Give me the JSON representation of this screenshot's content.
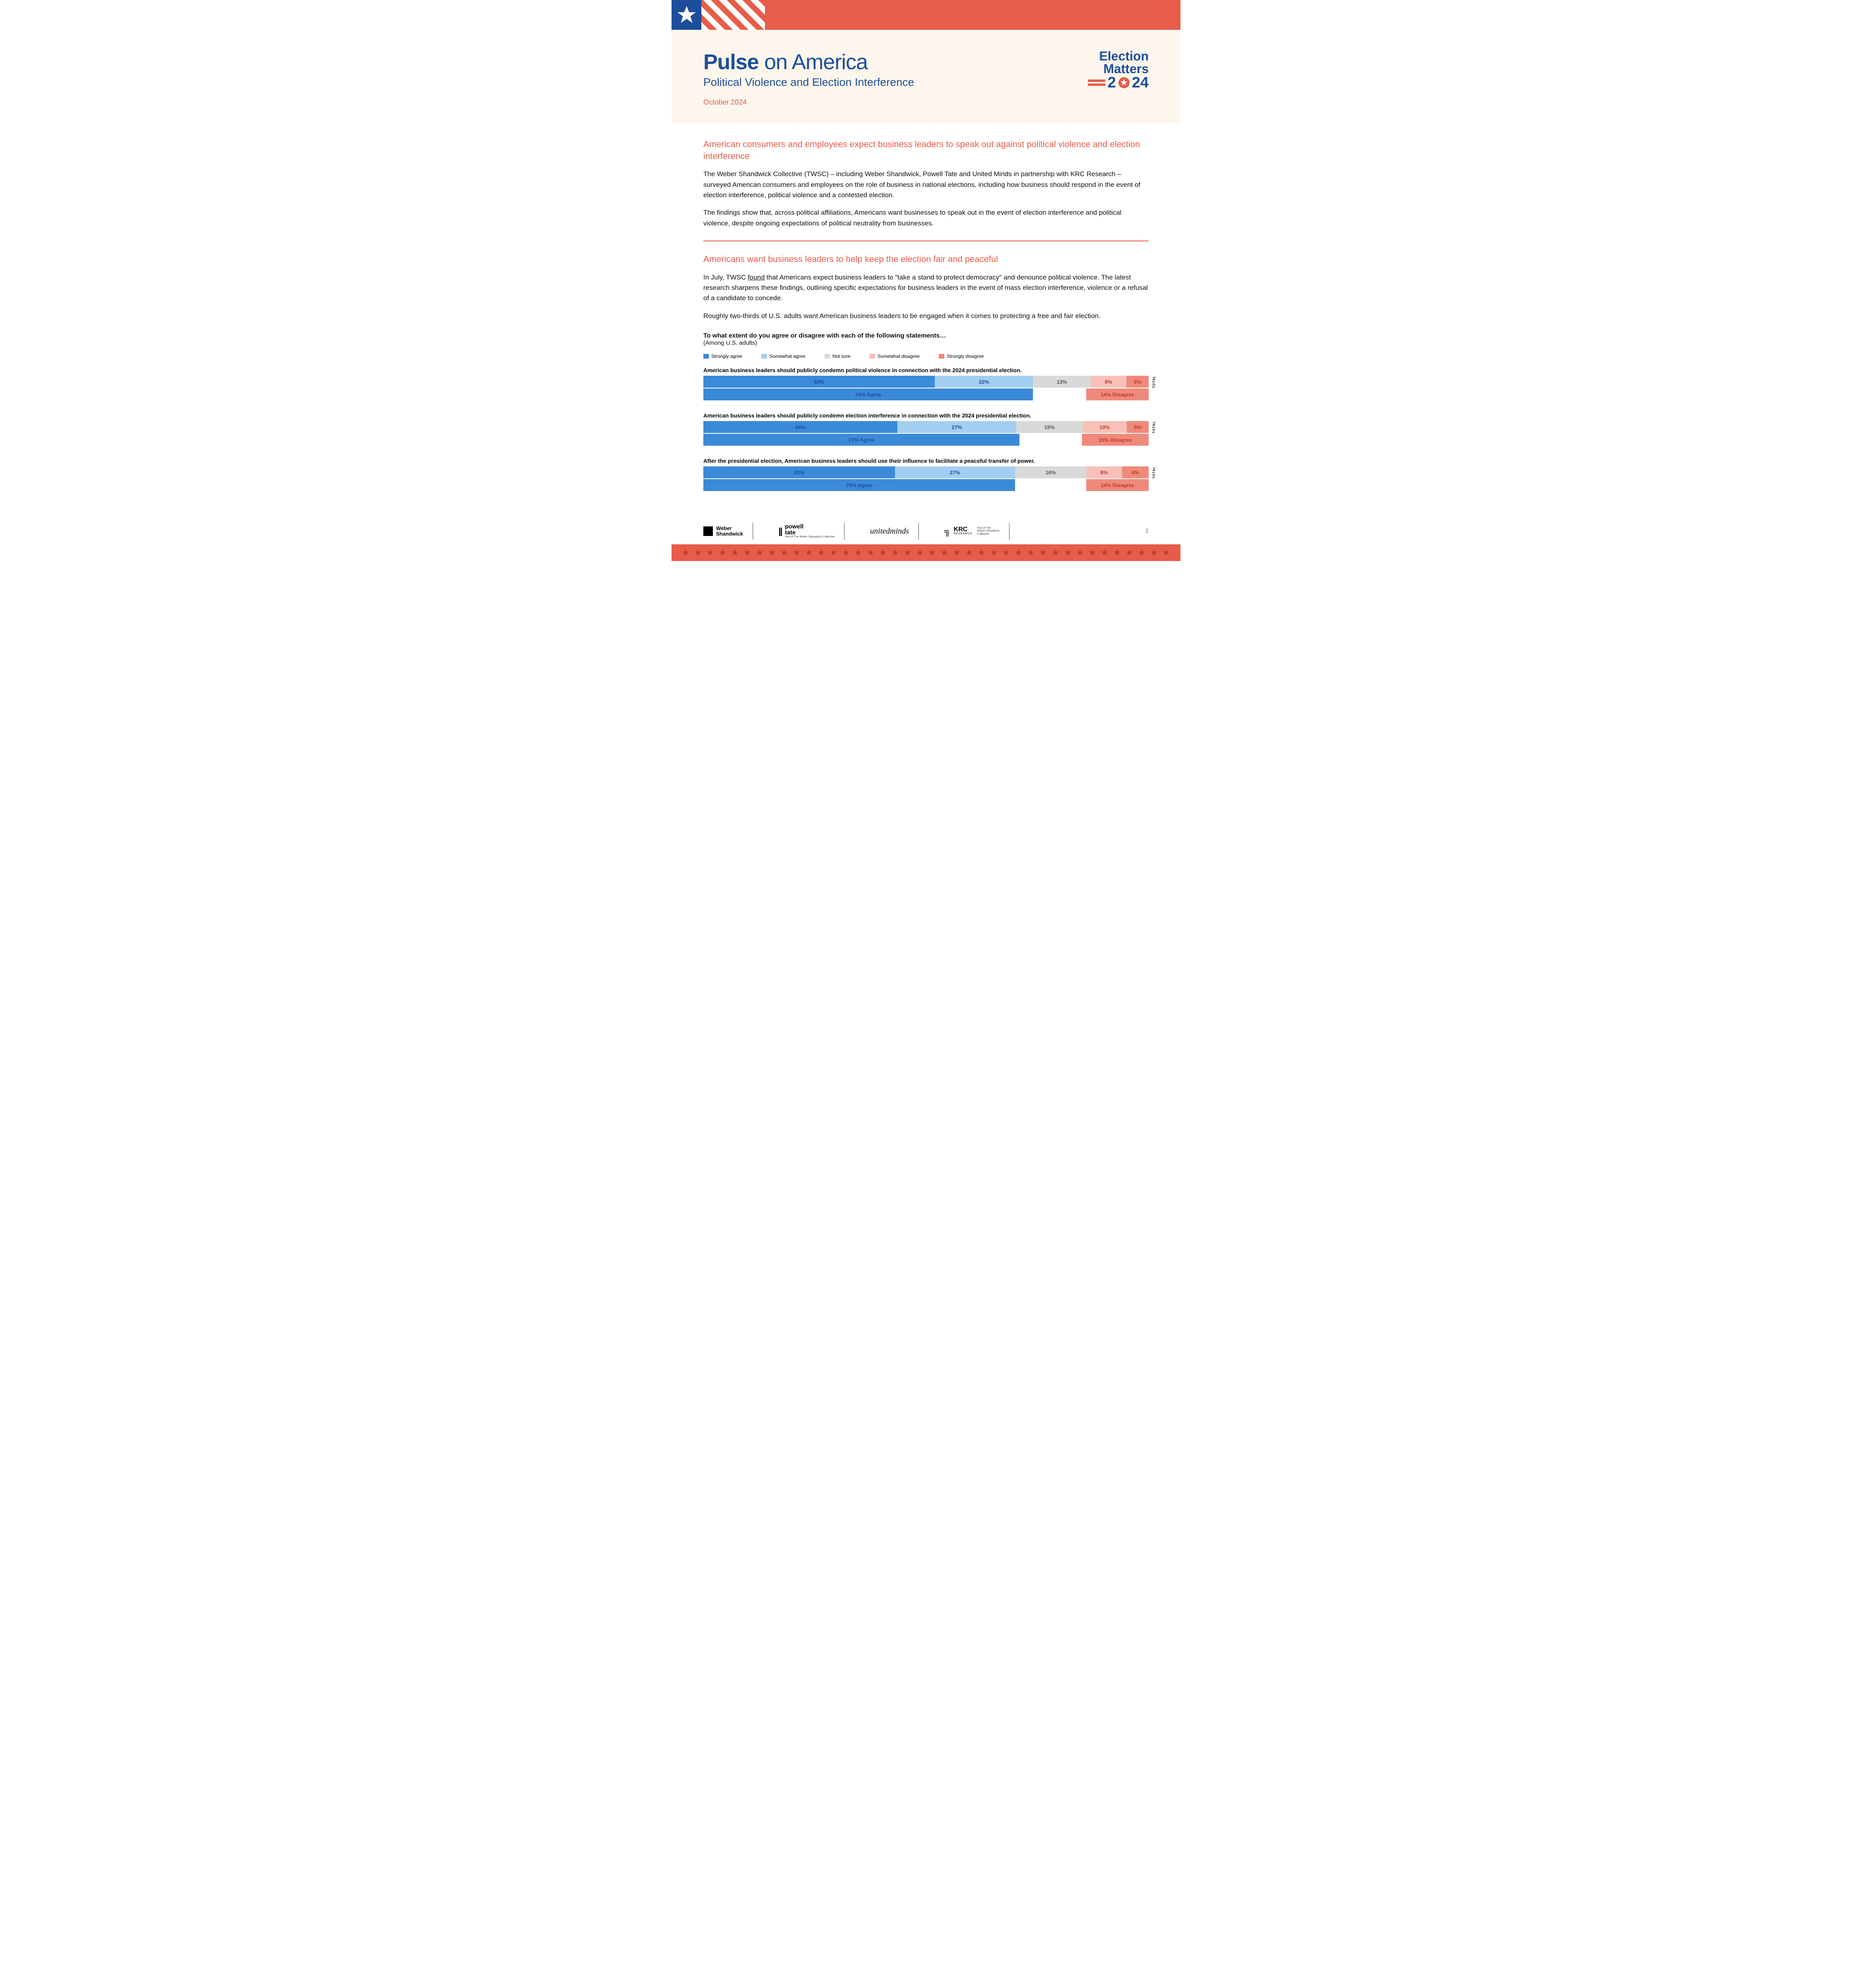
{
  "colors": {
    "red": "#e85c4a",
    "blue": "#1c4e9c",
    "cream": "#fdf6ec",
    "bar_strongly_agree": "#3b8ad8",
    "bar_somewhat_agree": "#a3cef1",
    "bar_notsure": "#d9d9d9",
    "bar_somewhat_disagree": "#f7c1b9",
    "bar_strongly_disagree": "#ef8a7a",
    "bar_agree_sum": "#3b8ad8",
    "bar_disagree_sum": "#ef8a7a",
    "text_agree": "#1c4e9c",
    "text_disagree": "#c0392b",
    "text_notsure": "#555"
  },
  "header": {
    "title_bold": "Pulse",
    "title_rest": " on America",
    "subtitle": "Political Violence and Election Interference",
    "date": "October 2024",
    "logo": {
      "l1": "Election",
      "l2": "Matters",
      "year_a": "2",
      "year_b": "24"
    }
  },
  "section1": {
    "head": "American consumers and employees expect business leaders to speak out against political violence and election interference",
    "p1": "The Weber Shandwick Collective (TWSC) – including Weber Shandwick, Powell Tate and United Minds in partnership with KRC Research – surveyed American consumers and employees on the role of business in national elections, including how business should respond in the event of election interference, political violence and a contested election.",
    "p2": "The findings show that, across political affiliations, Americans want businesses to speak out in the event of election interference and political violence, despite ongoing expectations of political neutrality from businesses."
  },
  "section2": {
    "head": "Americans want business leaders to help keep the election fair and peaceful",
    "p1a": "In July, TWSC ",
    "p1link": "found",
    "p1b": " that Americans expect business leaders to \"take a stand to protect democracy\" and denounce political violence. The latest research sharpens these findings, outlining specific expectations for business leaders in the event of mass election interference, violence or a refusal of a candidate to concede.",
    "p2": "Roughly two-thirds of U.S. adults want American business leaders to be engaged when it comes to protecting a free and fair election."
  },
  "chart": {
    "title": "To what extent do you agree or disagree with each of the following statements…",
    "sub": "(Among U.S. adults)",
    "legend": [
      "Strongly agree",
      "Somewhat agree",
      "Not sure",
      "Somewhat disagree",
      "Strongly disagree"
    ],
    "total_label": "TOTAL",
    "bars": [
      {
        "label": "American business leaders should publicly condemn political violence in connection with the 2024 presidential election.",
        "segs": [
          {
            "v": 52,
            "t": "52%"
          },
          {
            "v": 22,
            "t": "22%"
          },
          {
            "v": 13,
            "t": "13%"
          },
          {
            "v": 8,
            "t": "8%"
          },
          {
            "v": 5,
            "t": "5%"
          }
        ],
        "agree": {
          "v": 74,
          "t": "74% Agree"
        },
        "disagree": {
          "v": 14,
          "t": "14% Disagree"
        }
      },
      {
        "label": "American business leaders should publicly condemn election interference in connection with the 2024 presidential election.",
        "segs": [
          {
            "v": 44,
            "t": "44%"
          },
          {
            "v": 27,
            "t": "27%"
          },
          {
            "v": 15,
            "t": "15%"
          },
          {
            "v": 10,
            "t": "10%"
          },
          {
            "v": 5,
            "t": "5%"
          }
        ],
        "agree": {
          "v": 71,
          "t": "71% Agree"
        },
        "disagree": {
          "v": 15,
          "t": "15% Disagree"
        }
      },
      {
        "label": "After the presidential election, American business leaders should use their influence to facilitate a peaceful transfer of power.",
        "segs": [
          {
            "v": 43,
            "t": "43%"
          },
          {
            "v": 27,
            "t": "27%"
          },
          {
            "v": 16,
            "t": "16%"
          },
          {
            "v": 8,
            "t": "8%"
          },
          {
            "v": 6,
            "t": "6%"
          }
        ],
        "agree": {
          "v": 70,
          "t": "70% Agree"
        },
        "disagree": {
          "v": 14,
          "t": "14% Disagree"
        }
      }
    ]
  },
  "footer": {
    "logos": {
      "ws": "Weber\nShandwick",
      "pt": "powell\ntate",
      "pt_sub": "Part of The Weber Shandwick Collective",
      "um": "unitedminds",
      "krc": "KRC",
      "krc_sub": "RESEARCH",
      "krc_tag": "Part of The\nWeber Shandwick\nCollective"
    },
    "page": "1"
  }
}
